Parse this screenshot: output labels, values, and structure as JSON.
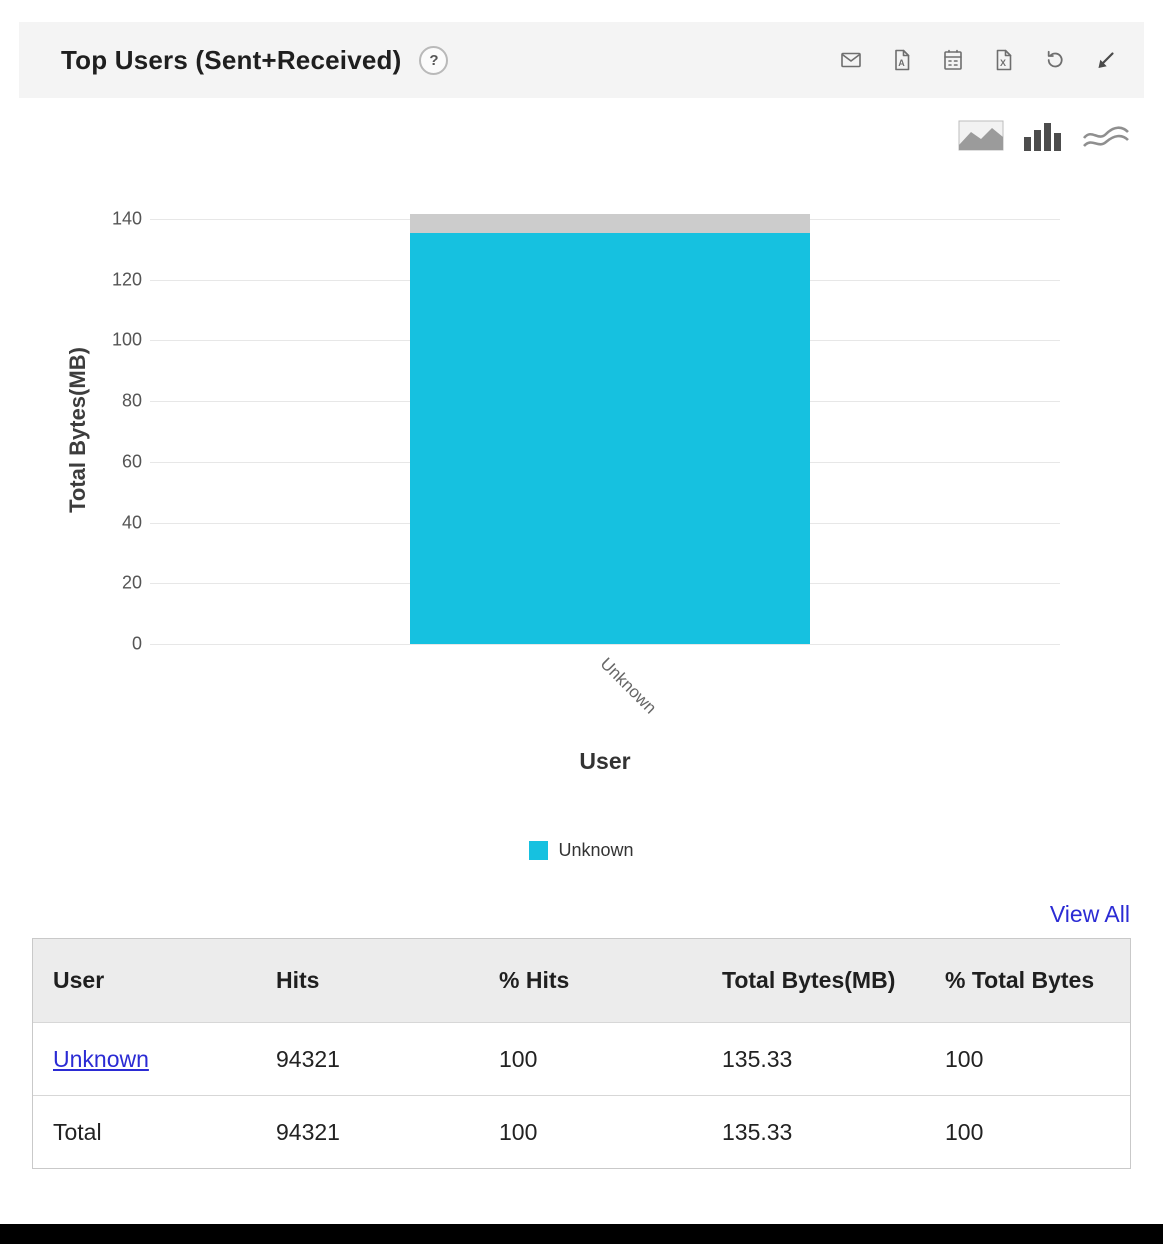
{
  "header": {
    "title": "Top Users (Sent+Received)",
    "help": "?",
    "toolbar_icons": [
      "email-icon",
      "pdf-export-icon",
      "csv-export-icon",
      "excel-export-icon",
      "refresh-icon",
      "expand-icon"
    ]
  },
  "chart_toolbar": {
    "icons": [
      "area-chart-icon",
      "bar-chart-icon",
      "line-chart-icon"
    ],
    "selected": "bar-chart-icon"
  },
  "chart_data": {
    "type": "bar",
    "categories": [
      "Unknown"
    ],
    "values": [
      135.33
    ],
    "series": [
      {
        "name": "Unknown",
        "values": [
          135.33
        ]
      }
    ],
    "cap_top": 141.6,
    "xlabel": "User",
    "ylabel": "Total Bytes(MB)",
    "ylim": [
      0,
      141.6
    ],
    "yticks": [
      0,
      20,
      40,
      60,
      80,
      100,
      120,
      140
    ],
    "grid": true,
    "legend": [
      "Unknown"
    ],
    "legend_position": "bottom",
    "bar_color": "#16c1e0",
    "cap_color": "#cccccc"
  },
  "view_all": "View All",
  "table": {
    "headers": [
      "User",
      "Hits",
      "% Hits",
      "Total Bytes(MB)",
      "% Total Bytes"
    ],
    "rows": [
      {
        "user": "Unknown",
        "hits": "94321",
        "pct_hits": "100",
        "total_bytes": "135.33",
        "pct_total_bytes": "100"
      },
      {
        "user": "Total",
        "hits": "94321",
        "pct_hits": "100",
        "total_bytes": "135.33",
        "pct_total_bytes": "100"
      }
    ]
  },
  "colors": {
    "accent": "#16c1e0",
    "link": "#2b2bd4",
    "header_bg": "#f4f4f4",
    "table_header_bg": "#ececec",
    "icon_gray": "#6e6e6e"
  }
}
